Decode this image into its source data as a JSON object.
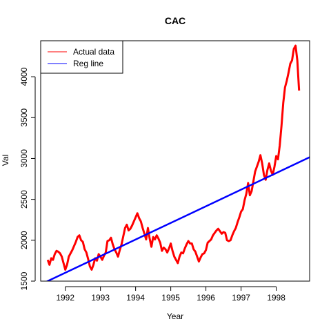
{
  "chart_data": {
    "type": "line",
    "title": "CAC",
    "xlabel": "Year",
    "ylabel": "Val",
    "xlim": [
      1991.3,
      1998.95
    ],
    "ylim": [
      1500,
      4440
    ],
    "x_ticks": [
      1992,
      1993,
      1994,
      1995,
      1996,
      1997,
      1998
    ],
    "y_ticks": [
      1500,
      2000,
      2500,
      3000,
      3500,
      4000
    ],
    "grid": false,
    "legend_position": "top-left",
    "series": [
      {
        "name": "Actual data",
        "color": "#ff0000",
        "x": [
          1991.5,
          1991.55,
          1991.6,
          1991.65,
          1991.7,
          1991.75,
          1991.8,
          1991.85,
          1991.9,
          1991.95,
          1992.0,
          1992.05,
          1992.1,
          1992.2,
          1992.3,
          1992.35,
          1992.4,
          1992.45,
          1992.5,
          1992.55,
          1992.6,
          1992.65,
          1992.7,
          1992.75,
          1992.8,
          1992.85,
          1992.9,
          1992.95,
          1993.0,
          1993.05,
          1993.1,
          1993.15,
          1993.2,
          1993.25,
          1993.3,
          1993.35,
          1993.4,
          1993.45,
          1993.5,
          1993.55,
          1993.6,
          1993.65,
          1993.7,
          1993.75,
          1993.8,
          1993.85,
          1993.9,
          1993.95,
          1994.0,
          1994.05,
          1994.1,
          1994.15,
          1994.2,
          1994.25,
          1994.3,
          1994.35,
          1994.4,
          1994.45,
          1994.5,
          1994.55,
          1994.6,
          1994.65,
          1994.7,
          1994.75,
          1994.8,
          1994.85,
          1994.9,
          1994.95,
          1995.0,
          1995.05,
          1995.1,
          1995.15,
          1995.2,
          1995.25,
          1995.3,
          1995.35,
          1995.4,
          1995.45,
          1995.5,
          1995.55,
          1995.6,
          1995.65,
          1995.7,
          1995.75,
          1995.8,
          1995.85,
          1995.9,
          1995.95,
          1996.0,
          1996.05,
          1996.1,
          1996.15,
          1996.2,
          1996.25,
          1996.3,
          1996.35,
          1996.4,
          1996.45,
          1996.5,
          1996.55,
          1996.6,
          1996.65,
          1996.7,
          1996.75,
          1996.8,
          1996.85,
          1996.9,
          1996.95,
          1997.0,
          1997.05,
          1997.1,
          1997.15,
          1997.2,
          1997.25,
          1997.3,
          1997.35,
          1997.4,
          1997.45,
          1997.5,
          1997.55,
          1997.6,
          1997.65,
          1997.7,
          1997.75,
          1997.8,
          1997.85,
          1997.9,
          1997.95,
          1998.0,
          1998.05,
          1998.1,
          1998.15,
          1998.2,
          1998.25,
          1998.3,
          1998.35,
          1998.4,
          1998.45,
          1998.5,
          1998.55,
          1998.6,
          1998.65
        ],
        "y": [
          1760,
          1700,
          1780,
          1760,
          1830,
          1870,
          1860,
          1840,
          1800,
          1720,
          1640,
          1700,
          1800,
          1880,
          1980,
          2040,
          2060,
          2000,
          1980,
          1890,
          1850,
          1770,
          1680,
          1640,
          1700,
          1780,
          1750,
          1830,
          1800,
          1760,
          1810,
          1850,
          1990,
          2000,
          2030,
          1950,
          1890,
          1850,
          1800,
          1880,
          1950,
          2050,
          2150,
          2190,
          2120,
          2140,
          2180,
          2230,
          2280,
          2330,
          2270,
          2230,
          2150,
          2080,
          2010,
          2150,
          2020,
          1920,
          2040,
          2010,
          2060,
          2020,
          1970,
          1870,
          1910,
          1890,
          1850,
          1900,
          1960,
          1870,
          1800,
          1760,
          1720,
          1800,
          1850,
          1840,
          1900,
          1950,
          1990,
          1960,
          1960,
          1890,
          1860,
          1800,
          1740,
          1790,
          1830,
          1840,
          1880,
          1970,
          1990,
          2010,
          2060,
          2090,
          2120,
          2140,
          2110,
          2080,
          2100,
          2090,
          2000,
          1990,
          2000,
          2060,
          2110,
          2150,
          2220,
          2280,
          2350,
          2380,
          2490,
          2570,
          2700,
          2550,
          2600,
          2720,
          2840,
          2900,
          2960,
          3040,
          2940,
          2800,
          2740,
          2860,
          2940,
          2850,
          2800,
          2900,
          3030,
          2990,
          3160,
          3400,
          3680,
          3870,
          3950,
          4050,
          4160,
          4200,
          4340,
          4380,
          4200,
          3830
        ]
      },
      {
        "name": "Reg line",
        "color": "#0000ff",
        "x": [
          1991.3,
          1998.95
        ],
        "y": [
          1460,
          3015
        ]
      }
    ]
  }
}
